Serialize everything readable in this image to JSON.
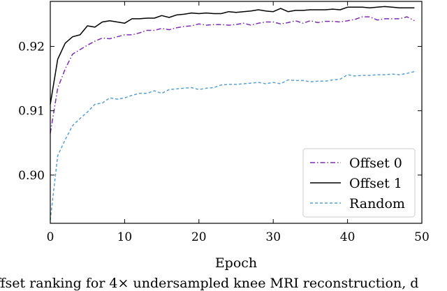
{
  "chart_data": {
    "type": "line",
    "title": "",
    "xlabel": "Epoch",
    "ylabel": "",
    "xlim": [
      0,
      50
    ],
    "ylim": [
      0.8925,
      0.927
    ],
    "xticks": [
      0,
      10,
      20,
      30,
      40,
      50
    ],
    "yticks": [
      0.9,
      0.91,
      0.92
    ],
    "ytick_labels": [
      "0.90",
      "0.91",
      "0.92"
    ],
    "grid": false,
    "legend_position": "lower-right",
    "series": [
      {
        "name": "Offset 0",
        "color": "#7a2fb0",
        "style": "dash-dot",
        "x": [
          0,
          1,
          2,
          3,
          4,
          5,
          6,
          7,
          8,
          9,
          10,
          11,
          12,
          13,
          14,
          15,
          16,
          17,
          18,
          19,
          20,
          21,
          22,
          23,
          24,
          25,
          26,
          27,
          28,
          29,
          30,
          31,
          32,
          33,
          34,
          35,
          36,
          37,
          38,
          39,
          40,
          41,
          42,
          43,
          44,
          45,
          46,
          47,
          48,
          49
        ],
        "y": [
          0.9065,
          0.9135,
          0.9165,
          0.9188,
          0.9195,
          0.9202,
          0.9208,
          0.9213,
          0.9212,
          0.9215,
          0.9218,
          0.9218,
          0.9221,
          0.9225,
          0.9225,
          0.9228,
          0.9226,
          0.9229,
          0.9231,
          0.9232,
          0.9235,
          0.9233,
          0.9234,
          0.9234,
          0.9233,
          0.9234,
          0.9236,
          0.9233,
          0.9236,
          0.9238,
          0.9238,
          0.9235,
          0.9237,
          0.924,
          0.9236,
          0.924,
          0.9237,
          0.9239,
          0.9239,
          0.9238,
          0.924,
          0.9242,
          0.9246,
          0.9246,
          0.9241,
          0.9243,
          0.9243,
          0.9243,
          0.9246,
          0.924
        ]
      },
      {
        "name": "Offset 1",
        "color": "#000000",
        "style": "solid",
        "x": [
          0,
          1,
          2,
          3,
          4,
          5,
          6,
          7,
          8,
          9,
          10,
          11,
          12,
          13,
          14,
          15,
          16,
          17,
          18,
          19,
          20,
          21,
          22,
          23,
          24,
          25,
          26,
          27,
          28,
          29,
          30,
          31,
          32,
          33,
          34,
          35,
          36,
          37,
          38,
          39,
          40,
          41,
          42,
          43,
          44,
          45,
          46,
          47,
          48,
          49
        ],
        "y": [
          0.911,
          0.918,
          0.9205,
          0.9215,
          0.9218,
          0.9232,
          0.923,
          0.9238,
          0.924,
          0.9238,
          0.9236,
          0.9243,
          0.9243,
          0.9244,
          0.9244,
          0.9248,
          0.9245,
          0.9249,
          0.925,
          0.9252,
          0.9251,
          0.9252,
          0.9251,
          0.9251,
          0.9254,
          0.9253,
          0.9254,
          0.9255,
          0.9257,
          0.9255,
          0.9254,
          0.9259,
          0.9254,
          0.9256,
          0.9256,
          0.9257,
          0.9257,
          0.9257,
          0.9258,
          0.9257,
          0.9261,
          0.9261,
          0.9261,
          0.926,
          0.9261,
          0.9262,
          0.9261,
          0.926,
          0.926,
          0.926
        ]
      },
      {
        "name": "Random",
        "color": "#5aa0cf",
        "style": "dashed",
        "x": [
          0,
          1,
          2,
          3,
          4,
          5,
          6,
          7,
          8,
          9,
          10,
          11,
          12,
          13,
          14,
          15,
          16,
          17,
          18,
          19,
          20,
          21,
          22,
          23,
          24,
          25,
          26,
          27,
          28,
          29,
          30,
          31,
          32,
          33,
          34,
          35,
          36,
          37,
          38,
          39,
          40,
          41,
          42,
          43,
          44,
          45,
          46,
          47,
          48,
          49
        ],
        "y": [
          0.893,
          0.903,
          0.9055,
          0.9077,
          0.9088,
          0.9098,
          0.911,
          0.9112,
          0.912,
          0.9118,
          0.912,
          0.9124,
          0.9127,
          0.9127,
          0.9131,
          0.9127,
          0.9133,
          0.9134,
          0.9135,
          0.9136,
          0.9133,
          0.9135,
          0.9136,
          0.914,
          0.9141,
          0.9141,
          0.9142,
          0.9143,
          0.9144,
          0.9142,
          0.9144,
          0.9142,
          0.9148,
          0.9147,
          0.9147,
          0.9145,
          0.9146,
          0.9146,
          0.9148,
          0.9149,
          0.9156,
          0.9154,
          0.9155,
          0.9155,
          0.9156,
          0.9156,
          0.9157,
          0.9156,
          0.9158,
          0.9161
        ]
      }
    ]
  },
  "caption": "ffset ranking for 4× undersampled knee MRI reconstruction, d"
}
